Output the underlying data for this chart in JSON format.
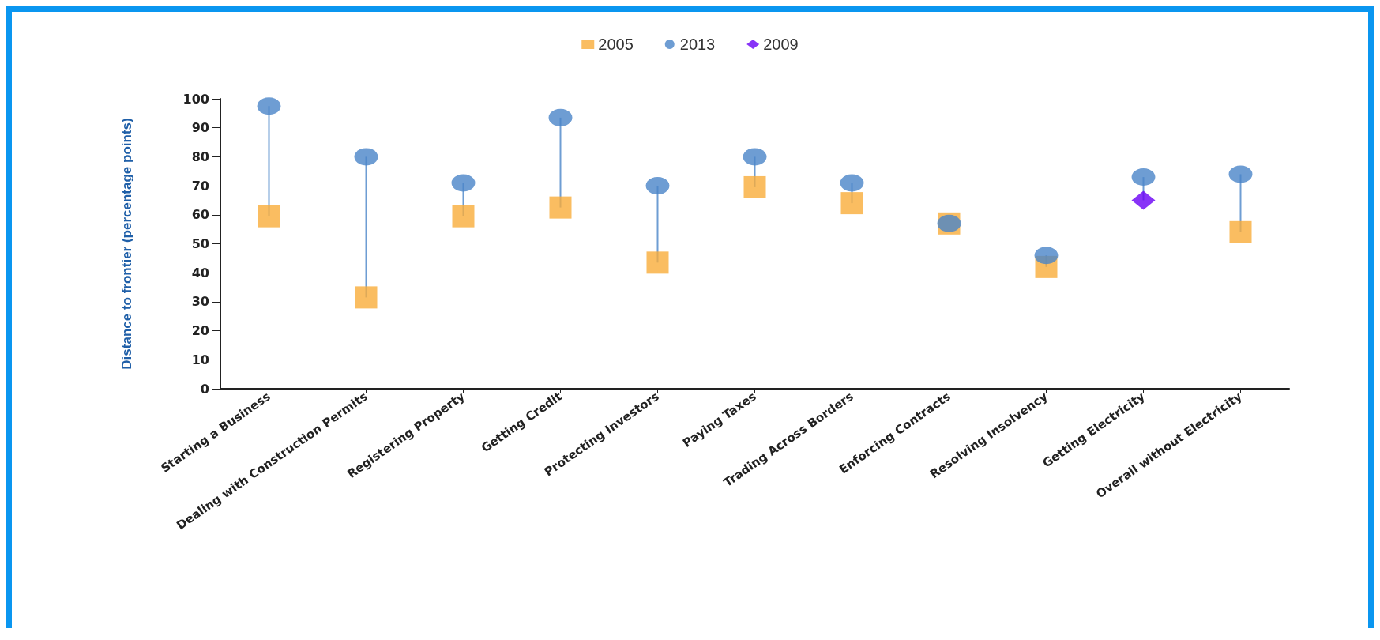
{
  "chart_data": {
    "type": "scatter",
    "ylabel": "Distance to frontier (percentage points)",
    "categories": [
      "Starting a Business",
      "Dealing with Construction Permits",
      "Registering Property",
      "Getting Credit",
      "Protecting Investors",
      "Paying Taxes",
      "Trading Across Borders",
      "Enforcing Contracts",
      "Resolving Insolvency",
      "Getting Electricity",
      "Overall without Electricity"
    ],
    "series": [
      {
        "name": "2005",
        "color": "#f9ad3a",
        "marker": "square",
        "values": [
          59.5,
          31.5,
          59.5,
          62.5,
          43.5,
          69.5,
          64,
          57,
          42,
          null,
          54
        ]
      },
      {
        "name": "2013",
        "color": "#4a84c8",
        "marker": "circle",
        "values": [
          97.5,
          80,
          71,
          93.5,
          70,
          80,
          71,
          57,
          46,
          73,
          74
        ]
      },
      {
        "name": "2009",
        "color": "#6a00f5",
        "marker": "diamond",
        "values": [
          null,
          null,
          null,
          null,
          null,
          null,
          null,
          null,
          null,
          65,
          null
        ]
      }
    ],
    "ylim": [
      0,
      100
    ],
    "yticks": [
      0,
      10,
      20,
      30,
      40,
      50,
      60,
      70,
      80,
      90,
      100
    ],
    "grid": false,
    "legend": "top"
  }
}
